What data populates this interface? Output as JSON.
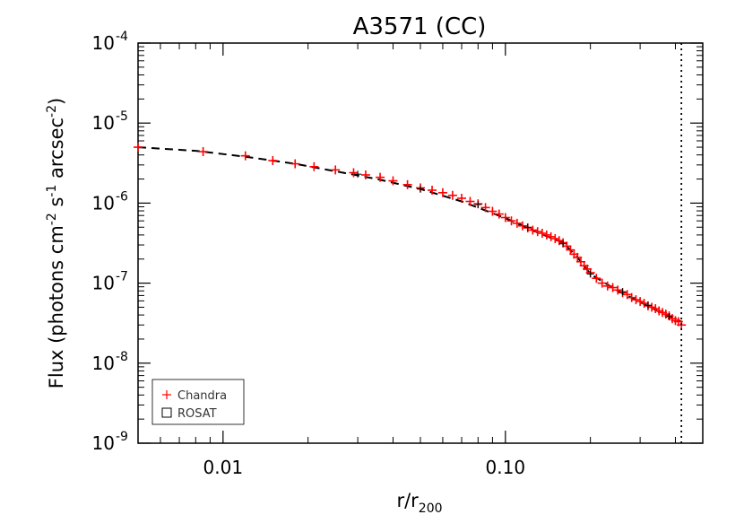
{
  "chart_data": {
    "type": "scatter",
    "title": "A3571 (CC)",
    "xlabel": "r/r",
    "xlabel_sub": "200",
    "ylabel": "Flux (photons cm",
    "ylabel_parts": [
      "Flux (photons cm",
      "-2",
      " s",
      "-1",
      " arcsec",
      "-2",
      ")"
    ],
    "xscale": "log",
    "yscale": "log",
    "xlim": [
      0.005,
      0.5
    ],
    "ylim": [
      1e-09,
      0.0001
    ],
    "x_ticks": [
      {
        "value": 0.01,
        "label": "0.01"
      },
      {
        "value": 0.1,
        "label": "0.10"
      }
    ],
    "y_ticks": [
      {
        "value": 1e-09,
        "base": "10",
        "exp": "-9"
      },
      {
        "value": 1e-08,
        "base": "10",
        "exp": "-8"
      },
      {
        "value": 1e-07,
        "base": "10",
        "exp": "-7"
      },
      {
        "value": 1e-06,
        "base": "10",
        "exp": "-6"
      },
      {
        "value": 1e-05,
        "base": "10",
        "exp": "-5"
      },
      {
        "value": 0.0001,
        "base": "10",
        "exp": "-4"
      }
    ],
    "legend": {
      "position": "bottom-left",
      "entries": [
        {
          "label": "Chandra",
          "marker": "plus",
          "color": "#ff0000"
        },
        {
          "label": "ROSAT",
          "marker": "square",
          "color": "#000000"
        }
      ]
    },
    "vertical_line": {
      "x": 0.42,
      "style": "dotted"
    },
    "model_curve": {
      "style": "dashed",
      "color": "#000000",
      "x": [
        0.005,
        0.008,
        0.012,
        0.018,
        0.025,
        0.035,
        0.05,
        0.07,
        0.1,
        0.13,
        0.16,
        0.18,
        0.2,
        0.25,
        0.3,
        0.35,
        0.4,
        0.42
      ],
      "y": [
        5e-06,
        4.5e-06,
        3.8e-06,
        3.1e-06,
        2.5e-06,
        2e-06,
        1.5e-06,
        1.05e-06,
        6.5e-07,
        4.3e-07,
        3.2e-07,
        2.1e-07,
        1.3e-07,
        8e-08,
        5.8e-08,
        4.4e-08,
        3.6e-08,
        3.3e-08
      ]
    },
    "series": [
      {
        "name": "Chandra",
        "color": "#ff0000",
        "x": [
          0.005,
          0.0085,
          0.012,
          0.015,
          0.018,
          0.021,
          0.025,
          0.029,
          0.032,
          0.036,
          0.04,
          0.045,
          0.05,
          0.055,
          0.06,
          0.065,
          0.07,
          0.075,
          0.08,
          0.085,
          0.09,
          0.095,
          0.1,
          0.105,
          0.11,
          0.115,
          0.12,
          0.125,
          0.13,
          0.135,
          0.14,
          0.145,
          0.15,
          0.155,
          0.16,
          0.165,
          0.17,
          0.175,
          0.18,
          0.185,
          0.19,
          0.195,
          0.2,
          0.21,
          0.22,
          0.23,
          0.24,
          0.25,
          0.26,
          0.27,
          0.28,
          0.29,
          0.3,
          0.31,
          0.32,
          0.33,
          0.34,
          0.35,
          0.36,
          0.37,
          0.38,
          0.39,
          0.4,
          0.41,
          0.42
        ],
        "y": [
          5e-06,
          4.4e-06,
          3.9e-06,
          3.4e-06,
          3.1e-06,
          2.85e-06,
          2.6e-06,
          2.4e-06,
          2.25e-06,
          2.1e-06,
          1.9e-06,
          1.7e-06,
          1.55e-06,
          1.45e-06,
          1.35e-06,
          1.25e-06,
          1.15e-06,
          1.05e-06,
          9.8e-07,
          8.8e-07,
          7.9e-07,
          7.3e-07,
          6.6e-07,
          6e-07,
          5.6e-07,
          5.2e-07,
          4.9e-07,
          4.6e-07,
          4.4e-07,
          4.2e-07,
          4e-07,
          3.8e-07,
          3.6e-07,
          3.4e-07,
          3.2e-07,
          2.9e-07,
          2.6e-07,
          2.3e-07,
          2.1e-07,
          1.85e-07,
          1.65e-07,
          1.5e-07,
          1.35e-07,
          1.15e-07,
          1e-07,
          9.2e-08,
          8.8e-08,
          8.2e-08,
          7.6e-08,
          7.2e-08,
          6.6e-08,
          6.2e-08,
          5.9e-08,
          5.6e-08,
          5.2e-08,
          5e-08,
          4.8e-08,
          4.5e-08,
          4.3e-08,
          4.1e-08,
          3.9e-08,
          3.6e-08,
          3.4e-08,
          3.3e-08,
          3e-08
        ]
      },
      {
        "name": "ROSAT",
        "color": "#000000",
        "x": [
          0.03,
          0.05,
          0.08,
          0.12,
          0.16,
          0.2,
          0.26,
          0.32,
          0.38
        ],
        "y": [
          2.3e-06,
          1.5e-06,
          9.6e-07,
          5e-07,
          3.1e-07,
          1.3e-07,
          7.8e-08,
          5.3e-08,
          3.8e-08
        ]
      }
    ]
  }
}
